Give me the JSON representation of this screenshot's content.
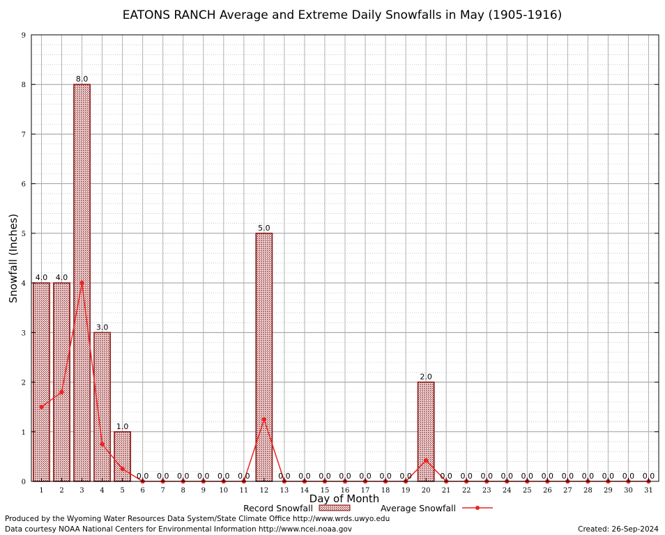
{
  "chart_data": {
    "type": "bar",
    "title": "EATONS RANCH Average and Extreme Daily Snowfalls in May (1905-1916)",
    "xlabel": "Day of Month",
    "ylabel": "Snowfall (Inches)",
    "ylim": [
      0,
      9
    ],
    "yticks": [
      "0",
      "1",
      "2",
      "3",
      "4",
      "5",
      "6",
      "7",
      "8",
      "9"
    ],
    "categories": [
      "1",
      "2",
      "3",
      "4",
      "5",
      "6",
      "7",
      "8",
      "9",
      "10",
      "11",
      "12",
      "13",
      "14",
      "15",
      "16",
      "17",
      "18",
      "19",
      "20",
      "21",
      "22",
      "23",
      "24",
      "25",
      "26",
      "27",
      "28",
      "29",
      "30",
      "31"
    ],
    "series": [
      {
        "name": "Record Snowfall",
        "kind": "bar",
        "color": "#8b1a1a",
        "values": [
          4.0,
          4.0,
          8.0,
          3.0,
          1.0,
          0.0,
          0.0,
          0.0,
          0.0,
          0.0,
          0.0,
          5.0,
          0.0,
          0.0,
          0.0,
          0.0,
          0.0,
          0.0,
          0.0,
          2.0,
          0.0,
          0.0,
          0.0,
          0.0,
          0.0,
          0.0,
          0.0,
          0.0,
          0.0,
          0.0,
          0.0
        ],
        "labels": [
          "4.0",
          "4.0",
          "8.0",
          "3.0",
          "1.0",
          "0.0",
          "0.0",
          "0.0",
          "0.0",
          "0.0",
          "0.0",
          "5.0",
          "0.0",
          "0.0",
          "0.0",
          "0.0",
          "0.0",
          "0.0",
          "0.0",
          "2.0",
          "0.0",
          "0.0",
          "0.0",
          "0.0",
          "0.0",
          "0.0",
          "0.0",
          "0.0",
          "0.0",
          "0.0",
          "0.0"
        ]
      },
      {
        "name": "Average Snowfall",
        "kind": "line",
        "color": "#ee2222",
        "values": [
          1.5,
          1.8,
          4.0,
          0.75,
          0.25,
          0.0,
          0.0,
          0.0,
          0.0,
          0.0,
          0.0,
          1.25,
          0.0,
          0.0,
          0.0,
          0.0,
          0.0,
          0.0,
          0.0,
          0.42,
          0.0,
          0.0,
          0.0,
          0.0,
          0.0,
          0.0,
          0.0,
          0.0,
          0.0,
          0.0,
          0.0
        ]
      }
    ],
    "grid": true,
    "legend_position": "bottom-center"
  },
  "footer": {
    "left_line1": "Produced by the Wyoming Water Resources Data System/State Climate Office http://www.wrds.uwyo.edu",
    "left_line2": "Data courtesy NOAA National Centers for Environmental Information http://www.ncei.noaa.gov",
    "right": "Created: 26-Sep-2024"
  }
}
